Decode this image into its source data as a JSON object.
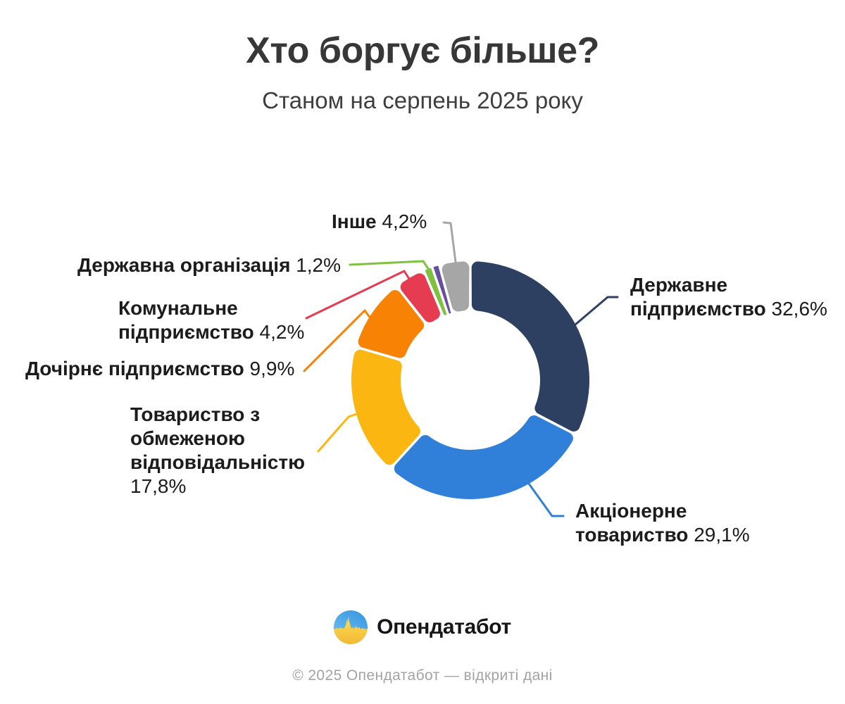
{
  "header": {
    "title": "Хто боргує більше?",
    "subtitle": "Станом на серпень 2025 року"
  },
  "chart_data": {
    "type": "pie",
    "variant": "donut",
    "title": "Хто боргує більше?",
    "subtitle": "Станом на серпень 2025 року",
    "unit": "%",
    "start_angle_deg": 0,
    "direction": "clockwise",
    "segments": [
      {
        "label": "Державне підприємство",
        "value": 32.6,
        "value_display": "32,6%",
        "color": "#2E4061"
      },
      {
        "label": "Акціонерне товариство",
        "value": 29.1,
        "value_display": "29,1%",
        "color": "#3080D9"
      },
      {
        "label": "Товариство з обмеженою відповідальністю",
        "value": 17.8,
        "value_display": "17,8%",
        "color": "#FBB612"
      },
      {
        "label": "Дочірнє підприємство",
        "value": 9.9,
        "value_display": "9,9%",
        "color": "#F88203"
      },
      {
        "label": "Комунальне підприємство",
        "value": 4.2,
        "value_display": "4,2%",
        "color": "#E63C52"
      },
      {
        "label": "Державна організація",
        "value": 1.2,
        "value_display": "1,2%",
        "color": "#7EC13E"
      },
      {
        "label": "",
        "value": 1.0,
        "value_display": "",
        "color": "#684EA0"
      },
      {
        "label": "Інше",
        "value": 4.2,
        "value_display": "4,2%",
        "color": "#A7A6A6"
      }
    ]
  },
  "footer": {
    "logo_text": "Опендатабот",
    "copyright": "© 2025 Опендатабот — відкриті дані"
  },
  "brand": {
    "logo_blue": "#3D9BE2",
    "logo_yellow": "#F2B935",
    "label_text_color": "#1C1C1C"
  }
}
